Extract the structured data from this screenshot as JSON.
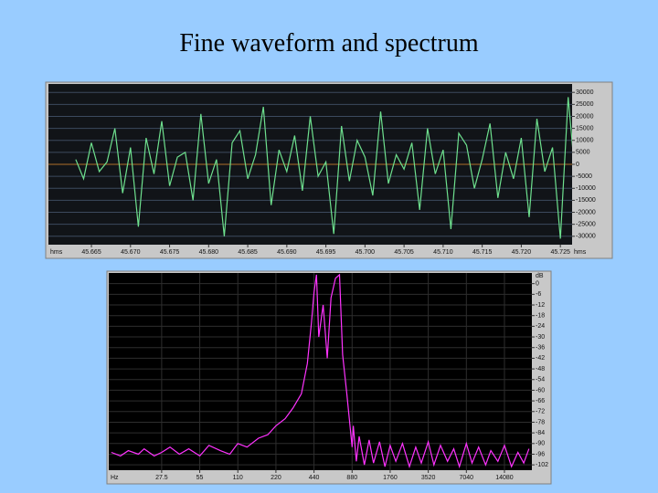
{
  "title": "Fine waveform and spectrum",
  "chart_data": [
    {
      "type": "line",
      "x_unit_left": "hms",
      "x_unit_right": "hms",
      "x": [
        45.663,
        45.664,
        45.665,
        45.666,
        45.667,
        45.668,
        45.669,
        45.67,
        45.671,
        45.672,
        45.673,
        45.674,
        45.675,
        45.676,
        45.677,
        45.678,
        45.679,
        45.68,
        45.681,
        45.682,
        45.683,
        45.684,
        45.685,
        45.686,
        45.687,
        45.688,
        45.689,
        45.69,
        45.691,
        45.692,
        45.693,
        45.694,
        45.695,
        45.696,
        45.697,
        45.698,
        45.699,
        45.7,
        45.701,
        45.702,
        45.703,
        45.704,
        45.705,
        45.706,
        45.707,
        45.708,
        45.709,
        45.71,
        45.711,
        45.712,
        45.713,
        45.714,
        45.715,
        45.716,
        45.717,
        45.718,
        45.719,
        45.72,
        45.721,
        45.722,
        45.723,
        45.724,
        45.725,
        45.726,
        45.727
      ],
      "series": [
        {
          "color": "#6ee08e",
          "values": [
            2000,
            -6000,
            9000,
            -3000,
            1000,
            15000,
            -12000,
            7000,
            -26000,
            11000,
            -4000,
            18000,
            -9000,
            3000,
            5000,
            -15000,
            21000,
            -8000,
            2000,
            -30000,
            9000,
            14000,
            -6000,
            4000,
            24000,
            -17000,
            6000,
            -3000,
            12000,
            -11000,
            20000,
            -5000,
            1000,
            -29000,
            16000,
            -7000,
            10000,
            3000,
            -13000,
            22000,
            -8000,
            4000,
            -2000,
            9000,
            -19000,
            15000,
            -4000,
            6000,
            -27000,
            13000,
            8000,
            -10000,
            2000,
            17000,
            -14000,
            5000,
            -6000,
            11000,
            -22000,
            19000,
            -3000,
            7000,
            -31000,
            28000,
            -9000
          ]
        }
      ],
      "xlim": [
        45.6595,
        45.7265
      ],
      "xticks": [
        45.665,
        {
          "value": 45.67,
          "label": "45.670"
        },
        45.675,
        {
          "value": 45.68,
          "label": "45.680"
        },
        45.685,
        {
          "value": 45.69,
          "label": "45.690"
        },
        45.695,
        {
          "value": 45.7,
          "label": "45.700"
        },
        45.705,
        {
          "value": 45.71,
          "label": "45.710"
        },
        45.715,
        {
          "value": 45.72,
          "label": "45.720"
        },
        45.725
      ],
      "ylim": [
        -33500,
        33500
      ],
      "yticks": [
        30000,
        25000,
        20000,
        15000,
        10000,
        5000,
        0,
        -5000,
        -10000,
        -15000,
        -20000,
        -25000,
        -30000
      ],
      "grid": true,
      "log_x": false
    },
    {
      "type": "line",
      "x_unit_left": "Hz",
      "y_unit": "dB",
      "x": [
        11,
        13,
        15,
        18,
        20,
        24,
        27.5,
        32,
        38,
        45,
        55,
        65,
        80,
        95,
        110,
        130,
        160,
        190,
        220,
        260,
        300,
        350,
        390,
        420,
        440,
        460,
        480,
        520,
        560,
        600,
        650,
        700,
        740,
        800,
        880,
        900,
        950,
        1000,
        1100,
        1200,
        1300,
        1450,
        1600,
        1760,
        1950,
        2200,
        2500,
        2800,
        3100,
        3520,
        3900,
        4400,
        5000,
        5600,
        6200,
        7040,
        7800,
        8800,
        10000,
        11000,
        12500,
        14080,
        16000,
        18000,
        20000,
        22000
      ],
      "series": [
        {
          "color": "#ff33ff",
          "values": [
            -95,
            -97,
            -94,
            -96,
            -93,
            -97,
            -95,
            -92,
            -96,
            -93,
            -97,
            -91,
            -94,
            -96,
            -90,
            -92,
            -87,
            -85,
            -80,
            -76,
            -70,
            -62,
            -45,
            -22,
            -5,
            5,
            -30,
            -12,
            -42,
            -8,
            3,
            5,
            -40,
            -62,
            -92,
            -80,
            -100,
            -86,
            -102,
            -88,
            -101,
            -89,
            -103,
            -91,
            -100,
            -90,
            -103,
            -92,
            -101,
            -89,
            -102,
            -91,
            -100,
            -93,
            -103,
            -90,
            -101,
            -92,
            -102,
            -94,
            -100,
            -91,
            -103,
            -95,
            -101,
            -93
          ]
        }
      ],
      "xlim": [
        10.5,
        23200
      ],
      "xticks": [
        27.5,
        55,
        110,
        220,
        440,
        880,
        1760,
        3520,
        7040,
        14080
      ],
      "ylim": [
        -105,
        6
      ],
      "yticks": [
        0,
        -6,
        -12,
        -18,
        -24,
        -30,
        -36,
        -42,
        -48,
        -54,
        -60,
        -66,
        -72,
        -78,
        -84,
        -90,
        -96,
        -102
      ],
      "grid": true,
      "log_x": true
    }
  ]
}
